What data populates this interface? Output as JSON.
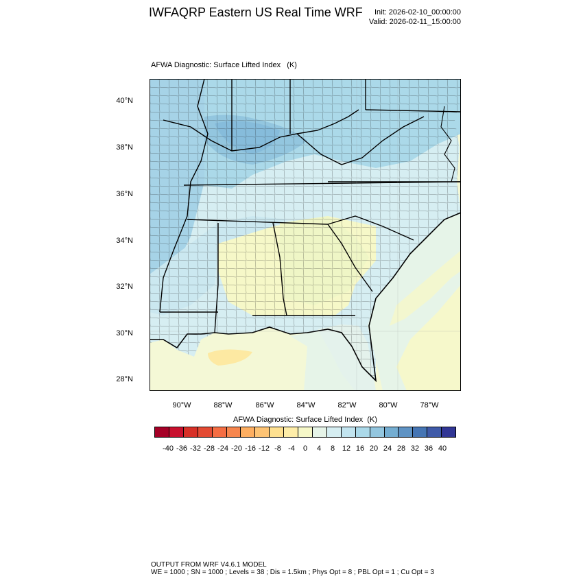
{
  "header": {
    "title": "IWFAQRP Eastern US Real Time WRF",
    "init": "Init: 2026-02-10_00:00:00",
    "valid": "Valid: 2026-02-11_15:00:00"
  },
  "map": {
    "subtitle": "AFWA Diagnostic: Surface Lifted Index   (K)",
    "lat_labels": [
      "40°N",
      "38°N",
      "36°N",
      "34°N",
      "32°N",
      "30°N",
      "28°N"
    ],
    "lon_labels": [
      "90°W",
      "88°W",
      "86°W",
      "84°W",
      "82°W",
      "80°W",
      "78°W"
    ],
    "lon_range": [
      -91.5,
      -76.5
    ],
    "lat_range": [
      27.5,
      41
    ]
  },
  "colorbar": {
    "title": "AFWA Diagnostic: Surface Lifted Index  (K)",
    "ticks": [
      "-40",
      "-36",
      "-32",
      "-28",
      "-24",
      "-20",
      "-16",
      "-12",
      "-8",
      "-4",
      "0",
      "4",
      "8",
      "12",
      "16",
      "20",
      "24",
      "28",
      "32",
      "36",
      "40"
    ],
    "colors": [
      "#a50026",
      "#c8102e",
      "#d73027",
      "#e34a33",
      "#f46d43",
      "#f7864e",
      "#fdae61",
      "#fdc374",
      "#fee090",
      "#feeda8",
      "#f6f8c8",
      "#e6f4e8",
      "#d6eef2",
      "#c2e4ef",
      "#abd9e9",
      "#93c6df",
      "#74add1",
      "#5f93c4",
      "#4575b4",
      "#3f5aa8",
      "#313695"
    ]
  },
  "footer": {
    "line1": "OUTPUT FROM WRF V4.6.1 MODEL",
    "line2": "WE = 1000 ; SN = 1000 ; Levels = 38 ; Dis = 1.5km ; Phys Opt = 8 ; PBL Opt = 1 ; Cu Opt = 3"
  }
}
